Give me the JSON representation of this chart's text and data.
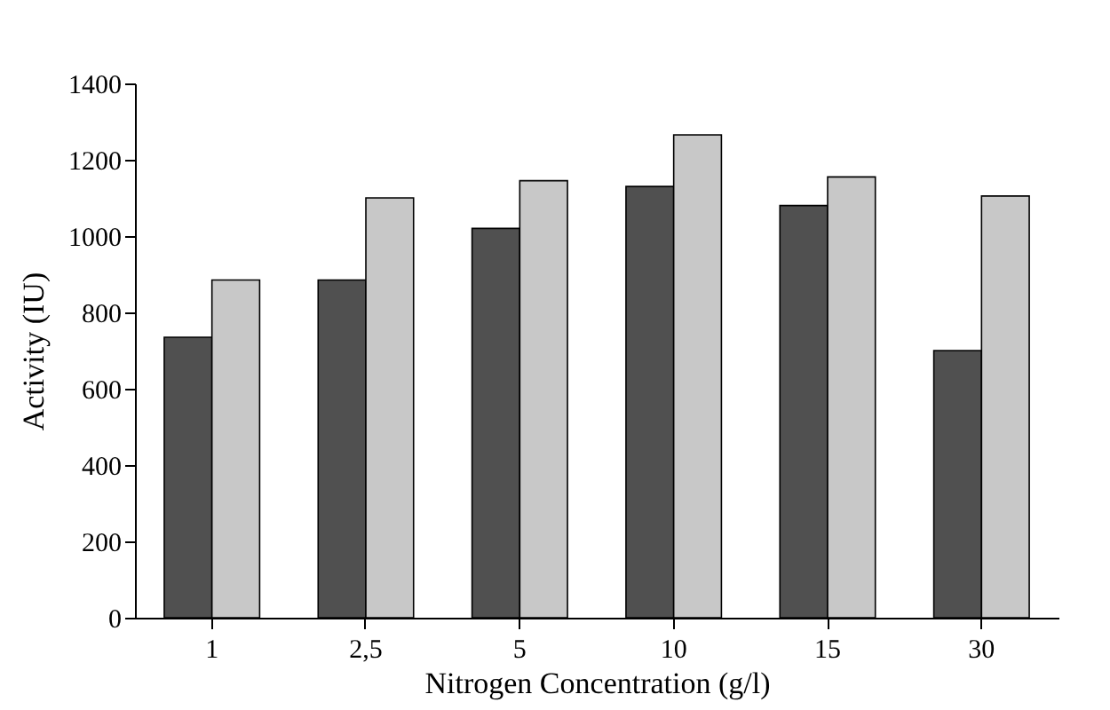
{
  "chart_data": {
    "type": "bar",
    "xlabel": "Nitrogen Concentration (g/l)",
    "ylabel": "Activity (IU)",
    "categories": [
      "1",
      "2,5",
      "5",
      "10",
      "15",
      "30"
    ],
    "series": [
      {
        "color": "#505050",
        "values": [
          735,
          885,
          1020,
          1130,
          1080,
          700
        ]
      },
      {
        "color": "#c8c8c8",
        "values": [
          885,
          1100,
          1145,
          1265,
          1155,
          1105
        ]
      }
    ],
    "ylim": [
      0,
      1400
    ],
    "yticks": [
      0,
      200,
      400,
      600,
      800,
      1000,
      1200,
      1400
    ],
    "grid": false,
    "legend": false
  }
}
